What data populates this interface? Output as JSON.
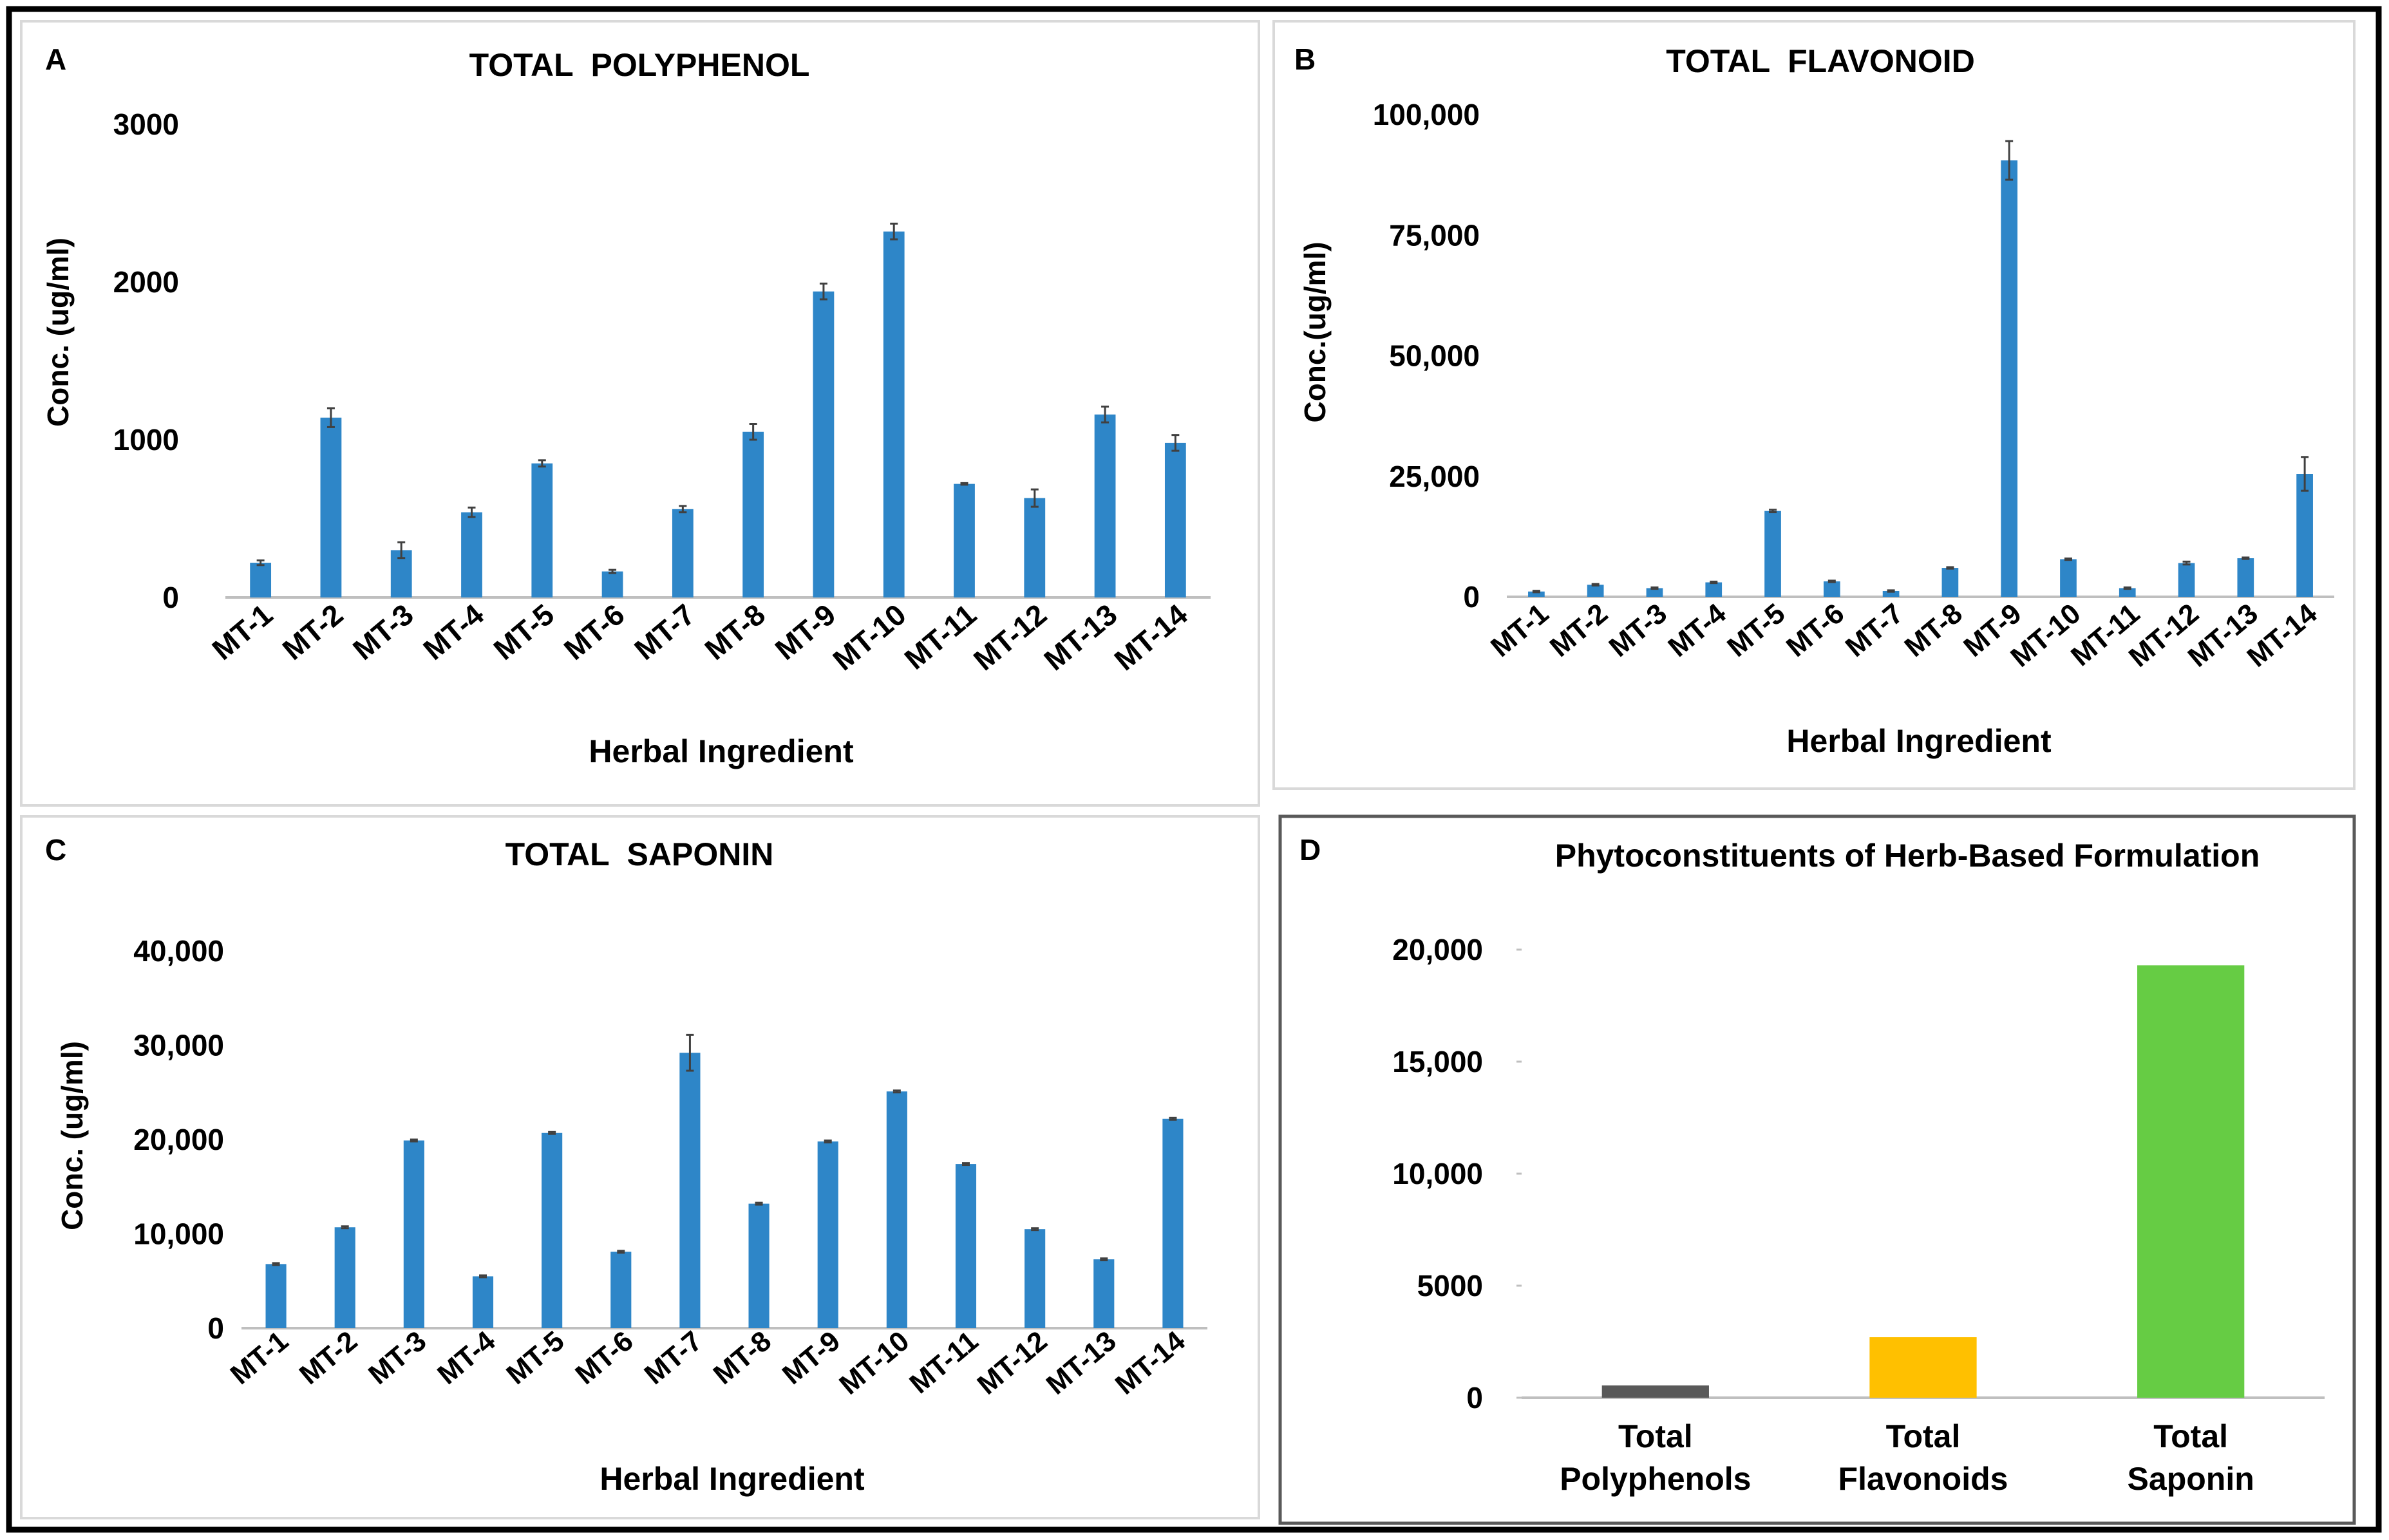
{
  "figure": {
    "colors": {
      "bar": "#2E86C8",
      "frame": "#000000",
      "panel_border": "#D9D9D9",
      "axis": "#BFBFBF",
      "error": "#404040"
    }
  },
  "chart_data": [
    {
      "type": "bar",
      "label": "A",
      "title": "TOTAL  POLYPHENOL",
      "xlabel": "Herbal Ingredient",
      "ylabel": "Conc. (ug/ml)",
      "ylim": [
        0,
        3000
      ],
      "yticks": [
        0,
        1000,
        2000,
        3000
      ],
      "ytick_labels": [
        "0",
        "1000",
        "2000",
        "3000"
      ],
      "categories": [
        "MT-1",
        "MT-2",
        "MT-3",
        "MT-4",
        "MT-5",
        "MT-6",
        "MT-7",
        "MT-8",
        "MT-9",
        "MT-10",
        "MT-11",
        "MT-12",
        "MT-13",
        "MT-14"
      ],
      "values": [
        220,
        1140,
        300,
        540,
        850,
        165,
        560,
        1050,
        1940,
        2320,
        720,
        630,
        1160,
        980
      ],
      "errors": [
        15,
        60,
        50,
        30,
        20,
        10,
        20,
        50,
        50,
        50,
        5,
        55,
        50,
        50
      ]
    },
    {
      "type": "bar",
      "label": "B",
      "title": "TOTAL  FLAVONOID",
      "xlabel": "Herbal Ingredient",
      "ylabel": "Conc.(ug/ml)",
      "ylim": [
        0,
        100000
      ],
      "yticks": [
        0,
        25000,
        50000,
        75000,
        100000
      ],
      "ytick_labels": [
        "0",
        "25,000",
        "50,000",
        "75,000",
        "100,000"
      ],
      "categories": [
        "MT-1",
        "MT-2",
        "MT-3",
        "MT-4",
        "MT-5",
        "MT-6",
        "MT-7",
        "MT-8",
        "MT-9",
        "MT-10",
        "MT-11",
        "MT-12",
        "MT-13",
        "MT-14"
      ],
      "values": [
        1100,
        2500,
        1800,
        3000,
        17800,
        3200,
        1200,
        6000,
        90500,
        7800,
        1800,
        7000,
        8000,
        25500
      ],
      "errors": [
        150,
        150,
        150,
        150,
        250,
        150,
        150,
        150,
        4000,
        150,
        150,
        300,
        150,
        3500
      ]
    },
    {
      "type": "bar",
      "label": "C",
      "title": "TOTAL  SAPONIN",
      "xlabel": "Herbal Ingredient",
      "ylabel": "Conc. (ug/ml)",
      "ylim": [
        0,
        40000
      ],
      "yticks": [
        0,
        10000,
        20000,
        30000,
        40000
      ],
      "ytick_labels": [
        "0",
        "10,000",
        "20,000",
        "30,000",
        "40,000"
      ],
      "categories": [
        "MT-1",
        "MT-2",
        "MT-3",
        "MT-4",
        "MT-5",
        "MT-6",
        "MT-7",
        "MT-8",
        "MT-9",
        "MT-10",
        "MT-11",
        "MT-12",
        "MT-13",
        "MT-14"
      ],
      "values": [
        6800,
        10700,
        19900,
        5500,
        20700,
        8100,
        29200,
        13200,
        19800,
        25100,
        17400,
        10500,
        7300,
        22200
      ],
      "errors": [
        100,
        100,
        100,
        100,
        100,
        100,
        1900,
        100,
        100,
        100,
        100,
        100,
        100,
        100
      ]
    },
    {
      "type": "bar",
      "label": "D",
      "title": "Phytoconstituents of Herb-Based Formulation",
      "xlabel": "",
      "ylabel": "",
      "ylim": [
        0,
        20000
      ],
      "yticks": [
        0,
        5000,
        10000,
        15000,
        20000
      ],
      "ytick_labels": [
        "0",
        "5000",
        "10,000",
        "15,000",
        "20,000"
      ],
      "categories": [
        "Total Polyphenols",
        "Total Flavonoids",
        "Total Saponin"
      ],
      "category_lines": [
        [
          "Total",
          "Polyphenols"
        ],
        [
          "Total",
          "Flavonoids"
        ],
        [
          "Total",
          "Saponin"
        ]
      ],
      "values": [
        550,
        2700,
        19300
      ],
      "colors": [
        "#595959",
        "#FFC000",
        "#66CC44"
      ]
    }
  ]
}
